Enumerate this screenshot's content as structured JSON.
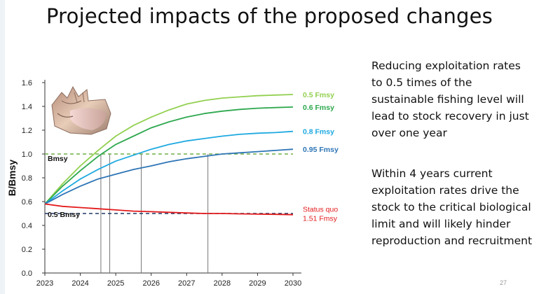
{
  "slide": {
    "title": "Projected impacts of the proposed changes",
    "paragraphs": [
      "Reducing exploitation rates to 0.5 times of the sustainable fishing level will lead to stock recovery in just over one year",
      "Within 4 years current exploitation rates drive the stock to the critical biological limit and will likely hinder reproduction and recruitment"
    ],
    "page_number": "27"
  },
  "image": {
    "icon": "conch-shell-image"
  },
  "chart_data": {
    "type": "line",
    "title": "",
    "xlabel": "",
    "ylabel": "B/Bmsy",
    "xlim": [
      2023,
      2030
    ],
    "ylim": [
      0,
      1.6
    ],
    "x_ticks": [
      2023,
      2024,
      2025,
      2026,
      2027,
      2028,
      2029,
      2030
    ],
    "y_ticks": [
      0.0,
      0.2,
      0.4,
      0.6,
      0.8,
      1.0,
      1.2,
      1.4,
      1.6
    ],
    "y_tick_labels": [
      "0.0",
      "0.2",
      "0.4",
      "0.6",
      "0.8",
      "1.0",
      "1.2",
      "1.4",
      "1.6"
    ],
    "grid": false,
    "series": [
      {
        "name": "0.5 Fmsy",
        "color": "#92d050",
        "x": [
          2023,
          2023.5,
          2024,
          2024.5,
          2025,
          2025.5,
          2026,
          2026.5,
          2027,
          2027.5,
          2028,
          2028.5,
          2029,
          2029.5,
          2030
        ],
        "values": [
          0.58,
          0.75,
          0.9,
          1.03,
          1.15,
          1.24,
          1.31,
          1.37,
          1.42,
          1.45,
          1.47,
          1.48,
          1.49,
          1.495,
          1.5
        ]
      },
      {
        "name": "0.6 Fmsy",
        "color": "#2ea84e",
        "x": [
          2023,
          2023.5,
          2024,
          2024.5,
          2025,
          2025.5,
          2026,
          2026.5,
          2027,
          2027.5,
          2028,
          2028.5,
          2029,
          2029.5,
          2030
        ],
        "values": [
          0.58,
          0.73,
          0.86,
          0.98,
          1.08,
          1.15,
          1.22,
          1.27,
          1.31,
          1.34,
          1.36,
          1.375,
          1.385,
          1.39,
          1.395
        ]
      },
      {
        "name": "0.8 Fmsy",
        "color": "#1ea9e0",
        "x": [
          2023,
          2023.5,
          2024,
          2024.5,
          2025,
          2025.5,
          2026,
          2026.5,
          2027,
          2027.5,
          2028,
          2028.5,
          2029,
          2029.5,
          2030
        ],
        "values": [
          0.58,
          0.69,
          0.79,
          0.87,
          0.94,
          0.99,
          1.04,
          1.08,
          1.11,
          1.13,
          1.15,
          1.165,
          1.175,
          1.18,
          1.19
        ]
      },
      {
        "name": "0.95 Fmsy",
        "color": "#2e75b6",
        "x": [
          2023,
          2023.5,
          2024,
          2024.5,
          2025,
          2025.5,
          2026,
          2026.5,
          2027,
          2027.5,
          2028,
          2028.5,
          2029,
          2029.5,
          2030
        ],
        "values": [
          0.58,
          0.66,
          0.73,
          0.79,
          0.83,
          0.87,
          0.9,
          0.935,
          0.96,
          0.98,
          1.0,
          1.01,
          1.02,
          1.03,
          1.04
        ]
      },
      {
        "name": "Status quo 1.51 Fmsy",
        "label_lines": [
          "Status quo",
          "1.51 Fmsy"
        ],
        "color": "#e31a1c",
        "x": [
          2023,
          2023.5,
          2024,
          2024.5,
          2025,
          2025.5,
          2026,
          2026.5,
          2027,
          2027.5,
          2028,
          2028.5,
          2029,
          2029.5,
          2030
        ],
        "values": [
          0.58,
          0.56,
          0.55,
          0.54,
          0.53,
          0.52,
          0.515,
          0.51,
          0.505,
          0.5,
          0.5,
          0.497,
          0.495,
          0.493,
          0.49
        ]
      }
    ],
    "reference_lines": [
      {
        "label": "Bmsy",
        "y": 1.0,
        "color": "#70ad47",
        "style": "dashed"
      },
      {
        "label": "0.5 Bmsy",
        "y": 0.5,
        "color": "#1f3864",
        "style": "dashed"
      }
    ],
    "crossing_markers": [
      2024.58,
      2024.83,
      2025.72,
      2027.6
    ]
  }
}
